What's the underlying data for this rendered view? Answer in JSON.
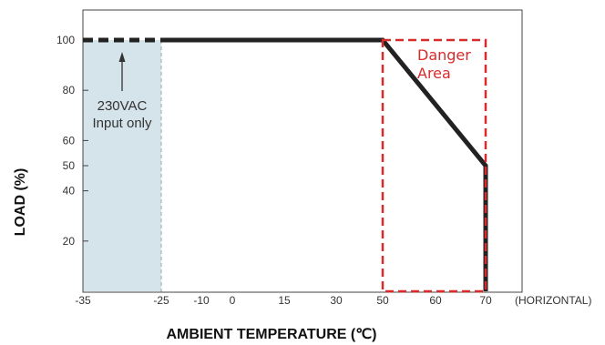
{
  "chart_data": {
    "type": "line",
    "xlabel": "AMBIENT TEMPERATURE (℃)",
    "ylabel": "LOAD (%)",
    "x_axis_note": "(HORIZONTAL)",
    "x_ticks": [
      -35,
      -25,
      -10,
      0,
      15,
      30,
      50,
      60,
      70
    ],
    "y_ticks": [
      20,
      40,
      50,
      60,
      80,
      100
    ],
    "xlim": [
      -35,
      80
    ],
    "ylim": [
      0,
      110
    ],
    "grid": false,
    "series": [
      {
        "segments": [
          {
            "style": "dashed",
            "points": [
              [
                -35,
                100
              ],
              [
                -25,
                100
              ]
            ]
          },
          {
            "style": "solid",
            "points": [
              [
                -25,
                100
              ],
              [
                50,
                100
              ],
              [
                70,
                50
              ],
              [
                70,
                0
              ]
            ]
          }
        ]
      }
    ],
    "shaded_region": {
      "x": [
        -35,
        -25
      ],
      "y": [
        0,
        100
      ],
      "color": "#d5e3ea"
    },
    "annotations": [
      {
        "lines": [
          "230VAC",
          "Input only"
        ],
        "arrow_to": [
          -25,
          100
        ]
      }
    ],
    "danger_area": {
      "lines": [
        "Danger",
        "Area"
      ],
      "x": [
        50,
        70
      ],
      "y": [
        0,
        100
      ],
      "color": "#d92b2b"
    },
    "line_color": "#222222"
  }
}
